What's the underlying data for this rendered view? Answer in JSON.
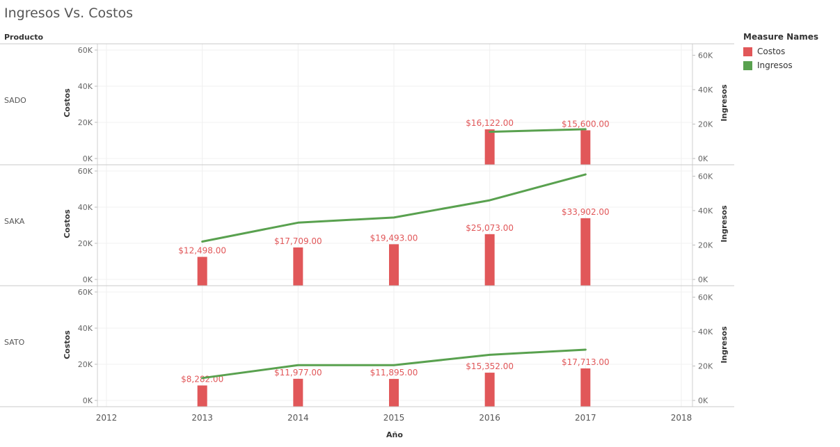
{
  "title": "Ingresos Vs. Costos",
  "row_header": "Producto",
  "legend": {
    "title": "Measure Names",
    "items": [
      {
        "label": "Costos",
        "color": "#e15759"
      },
      {
        "label": "Ingresos",
        "color": "#59a14f"
      }
    ]
  },
  "chart_data": {
    "type": "bar",
    "xlabel": "Año",
    "x_ticks": [
      "2012",
      "2013",
      "2014",
      "2015",
      "2016",
      "2017",
      "2018"
    ],
    "y_left_label": "Costos",
    "y_right_label": "Ingresos",
    "y_left_ticks": [
      "0K",
      "20K",
      "40K",
      "60K"
    ],
    "y_right_ticks": [
      "0K",
      "20K",
      "40K",
      "60K"
    ],
    "ylim_left": [
      0,
      60000
    ],
    "ylim_right": [
      0,
      63000
    ],
    "panels": [
      {
        "name": "SADO",
        "costos": [
          {
            "year": 2016,
            "value": 16122,
            "label": "$16,122.00"
          },
          {
            "year": 2017,
            "value": 15600,
            "label": "$15,600.00"
          }
        ],
        "ingresos": [
          {
            "year": 2016,
            "value": 15500
          },
          {
            "year": 2017,
            "value": 17000
          }
        ]
      },
      {
        "name": "SAKA",
        "costos": [
          {
            "year": 2013,
            "value": 12498,
            "label": "$12,498.00"
          },
          {
            "year": 2014,
            "value": 17709,
            "label": "$17,709.00"
          },
          {
            "year": 2015,
            "value": 19493,
            "label": "$19,493.00"
          },
          {
            "year": 2016,
            "value": 25073,
            "label": "$25,073.00"
          },
          {
            "year": 2017,
            "value": 33902,
            "label": "$33,902.00"
          }
        ],
        "ingresos": [
          {
            "year": 2013,
            "value": 22000
          },
          {
            "year": 2014,
            "value": 33000
          },
          {
            "year": 2015,
            "value": 36000
          },
          {
            "year": 2016,
            "value": 46000
          },
          {
            "year": 2017,
            "value": 61000
          }
        ]
      },
      {
        "name": "SATO",
        "costos": [
          {
            "year": 2013,
            "value": 8282,
            "label": "$8,282.00"
          },
          {
            "year": 2014,
            "value": 11977,
            "label": "$11,977.00"
          },
          {
            "year": 2015,
            "value": 11895,
            "label": "$11,895.00"
          },
          {
            "year": 2016,
            "value": 15352,
            "label": "$15,352.00"
          },
          {
            "year": 2017,
            "value": 17713,
            "label": "$17,713.00"
          }
        ],
        "ingresos": [
          {
            "year": 2013,
            "value": 13000
          },
          {
            "year": 2014,
            "value": 20500
          },
          {
            "year": 2015,
            "value": 20500
          },
          {
            "year": 2016,
            "value": 26500
          },
          {
            "year": 2017,
            "value": 29500
          }
        ]
      }
    ]
  }
}
